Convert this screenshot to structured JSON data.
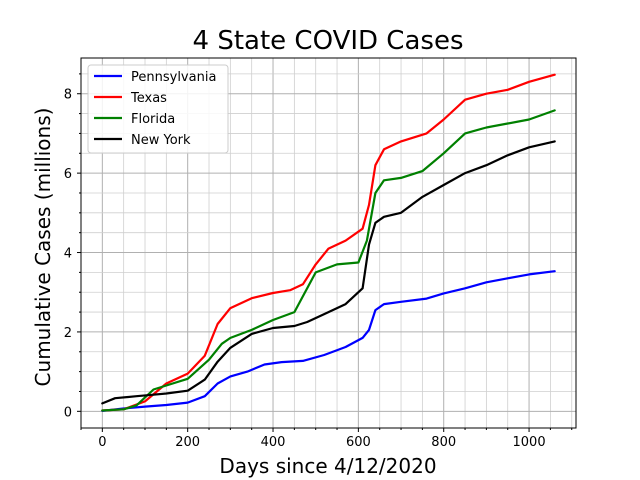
{
  "chart_data": {
    "type": "line",
    "title": "4 State COVID Cases",
    "xlabel": "Days since 4/12/2020",
    "ylabel": "Cumulative Cases (millions)",
    "xlim": [
      -50,
      1110
    ],
    "ylim": [
      -0.42,
      8.9
    ],
    "xticks": [
      0,
      200,
      400,
      600,
      800,
      1000
    ],
    "yticks": [
      0,
      2,
      4,
      6,
      8
    ],
    "grid": "on (major and minor)",
    "legend_position": "top-left",
    "series": [
      {
        "name": "Pennsylvania",
        "color": "#0000ff",
        "x": [
          0,
          50,
          100,
          150,
          200,
          240,
          270,
          300,
          340,
          380,
          420,
          470,
          520,
          570,
          610,
          625,
          640,
          660,
          700,
          760,
          800,
          850,
          900,
          950,
          1000,
          1060
        ],
        "y": [
          0.01,
          0.07,
          0.12,
          0.16,
          0.22,
          0.38,
          0.7,
          0.88,
          1.0,
          1.18,
          1.24,
          1.27,
          1.42,
          1.62,
          1.85,
          2.05,
          2.55,
          2.7,
          2.76,
          2.84,
          2.97,
          3.1,
          3.25,
          3.35,
          3.45,
          3.53
        ]
      },
      {
        "name": "Texas",
        "color": "#ff0000",
        "x": [
          0,
          50,
          100,
          150,
          200,
          240,
          270,
          300,
          350,
          400,
          440,
          470,
          500,
          530,
          570,
          610,
          625,
          640,
          660,
          700,
          760,
          800,
          850,
          900,
          950,
          1000,
          1060
        ],
        "y": [
          0.02,
          0.05,
          0.25,
          0.7,
          0.95,
          1.4,
          2.2,
          2.6,
          2.85,
          2.98,
          3.05,
          3.2,
          3.7,
          4.1,
          4.3,
          4.6,
          5.2,
          6.2,
          6.6,
          6.8,
          7.0,
          7.35,
          7.85,
          8.0,
          8.1,
          8.3,
          8.48
        ]
      },
      {
        "name": "Florida",
        "color": "#008000",
        "x": [
          0,
          50,
          80,
          120,
          150,
          200,
          250,
          280,
          300,
          350,
          400,
          450,
          500,
          550,
          600,
          620,
          640,
          660,
          700,
          750,
          800,
          850,
          900,
          950,
          1000,
          1060
        ],
        "y": [
          0.02,
          0.05,
          0.15,
          0.55,
          0.65,
          0.82,
          1.3,
          1.7,
          1.85,
          2.05,
          2.3,
          2.5,
          3.5,
          3.7,
          3.75,
          4.3,
          5.5,
          5.82,
          5.88,
          6.05,
          6.5,
          7.0,
          7.15,
          7.25,
          7.35,
          7.58
        ]
      },
      {
        "name": "New York",
        "color": "#000000",
        "x": [
          0,
          30,
          80,
          120,
          150,
          200,
          240,
          270,
          300,
          350,
          400,
          450,
          480,
          520,
          570,
          610,
          625,
          640,
          660,
          700,
          750,
          800,
          850,
          900,
          950,
          1000,
          1060
        ],
        "y": [
          0.2,
          0.33,
          0.38,
          0.42,
          0.45,
          0.52,
          0.8,
          1.25,
          1.6,
          1.95,
          2.1,
          2.15,
          2.25,
          2.45,
          2.7,
          3.1,
          4.2,
          4.75,
          4.9,
          5.0,
          5.4,
          5.7,
          6.0,
          6.2,
          6.45,
          6.65,
          6.8
        ]
      }
    ]
  }
}
